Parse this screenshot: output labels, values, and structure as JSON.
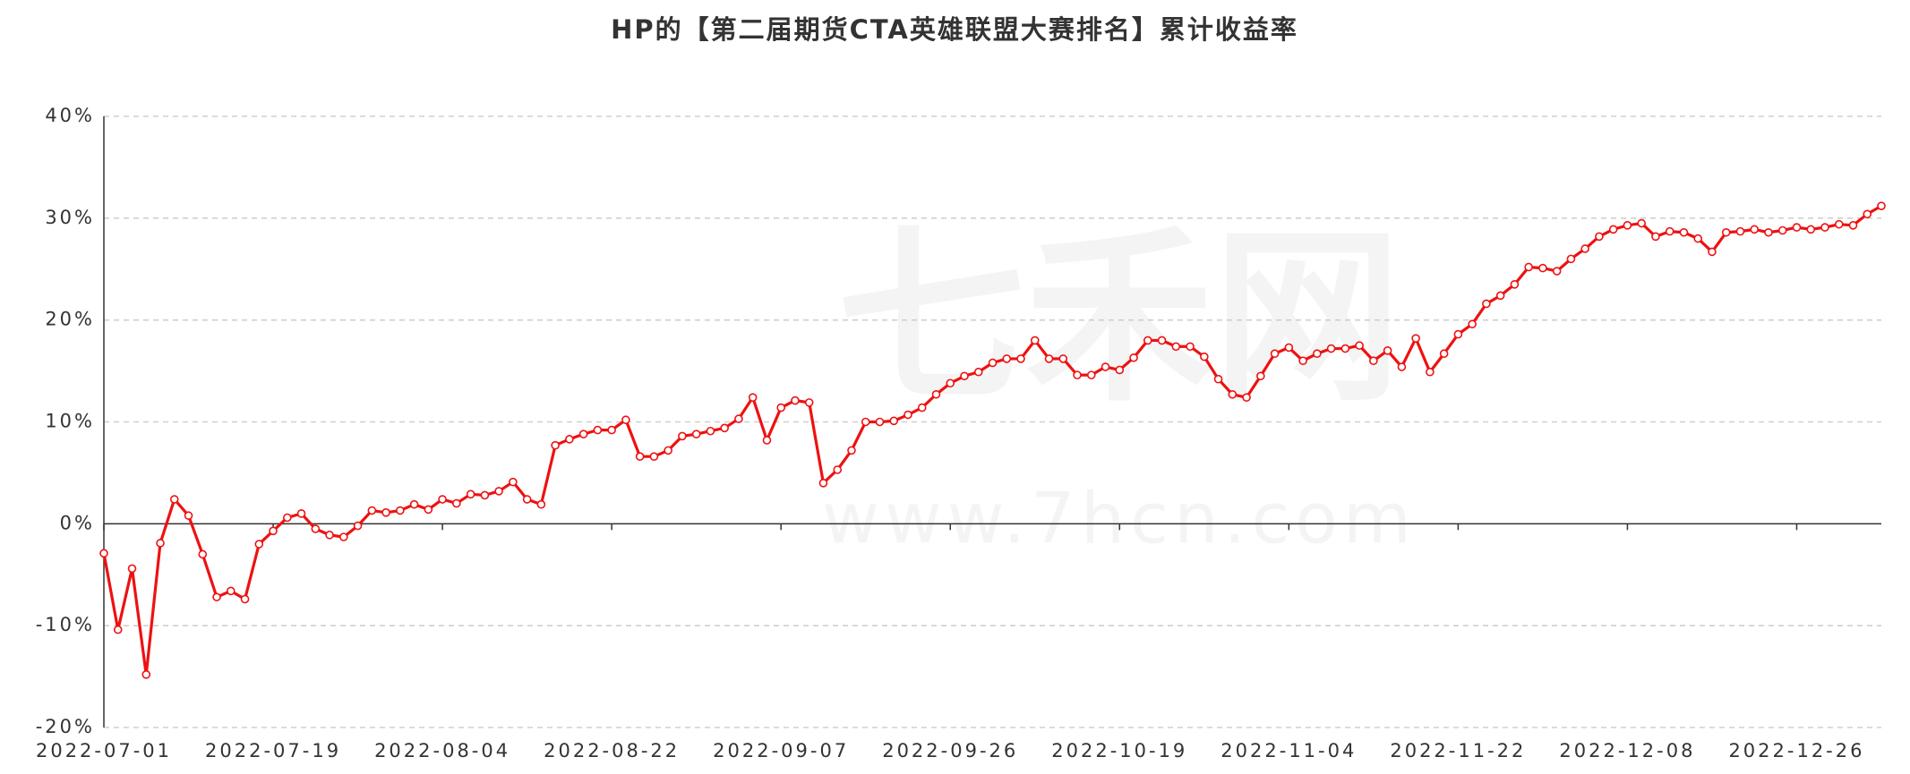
{
  "chart_data": {
    "type": "line",
    "title": "HP的【第二届期货CTA英雄联盟大赛排名】累计收益率",
    "watermark": [
      "七禾网",
      "www.7hcn.com"
    ],
    "categories": [
      "2022-07-01",
      null,
      null,
      null,
      null,
      null,
      null,
      null,
      null,
      null,
      null,
      null,
      "2022-07-19",
      null,
      null,
      null,
      null,
      null,
      null,
      null,
      null,
      null,
      null,
      null,
      "2022-08-04",
      null,
      null,
      null,
      null,
      null,
      null,
      null,
      null,
      null,
      null,
      null,
      "2022-08-22",
      null,
      null,
      null,
      null,
      null,
      null,
      null,
      null,
      null,
      null,
      null,
      "2022-09-07",
      null,
      null,
      null,
      null,
      null,
      null,
      null,
      null,
      null,
      null,
      null,
      "2022-09-26",
      null,
      null,
      null,
      null,
      null,
      null,
      null,
      null,
      null,
      null,
      null,
      "2022-10-19",
      null,
      null,
      null,
      null,
      null,
      null,
      null,
      null,
      null,
      null,
      null,
      "2022-11-04",
      null,
      null,
      null,
      null,
      null,
      null,
      null,
      null,
      null,
      null,
      null,
      "2022-11-22",
      null,
      null,
      null,
      null,
      null,
      null,
      null,
      null,
      null,
      null,
      null,
      "2022-12-08",
      null,
      null,
      null,
      null,
      null,
      null,
      null,
      null,
      null,
      null,
      null,
      "2022-12-26",
      null,
      null,
      null,
      null,
      null,
      null
    ],
    "series": [
      {
        "name": "累计收益率",
        "color": "#ee1111",
        "values": [
          -2.9,
          -10.4,
          -4.4,
          -14.8,
          -1.9,
          2.4,
          0.8,
          -3.0,
          -7.2,
          -6.6,
          -7.4,
          -2.0,
          -0.7,
          0.6,
          1.0,
          -0.5,
          -1.1,
          -1.3,
          -0.2,
          1.3,
          1.1,
          1.3,
          1.9,
          1.4,
          2.4,
          2.0,
          2.9,
          2.8,
          3.2,
          4.1,
          2.4,
          1.9,
          7.7,
          8.3,
          8.8,
          9.2,
          9.2,
          10.2,
          6.6,
          6.6,
          7.2,
          8.6,
          8.8,
          9.1,
          9.4,
          10.3,
          12.4,
          8.2,
          11.4,
          12.1,
          11.9,
          4.0,
          5.3,
          7.2,
          10.0,
          10.0,
          10.1,
          10.7,
          11.4,
          12.7,
          13.8,
          14.5,
          14.9,
          15.8,
          16.2,
          16.2,
          18.0,
          16.2,
          16.2,
          14.6,
          14.6,
          15.4,
          15.1,
          16.3,
          18.0,
          18.0,
          17.4,
          17.4,
          16.4,
          14.2,
          12.7,
          12.4,
          14.5,
          16.7,
          17.3,
          16.0,
          16.7,
          17.2,
          17.2,
          17.5,
          16.0,
          17.0,
          15.4,
          18.2,
          14.9,
          16.7,
          18.6,
          19.6,
          21.6,
          22.4,
          23.5,
          25.2,
          25.1,
          24.8,
          26.0,
          27.0,
          28.2,
          28.9,
          29.3,
          29.5,
          28.2,
          28.7,
          28.6,
          28.0,
          26.7,
          28.6,
          28.7,
          28.9,
          28.6,
          28.8,
          29.1,
          28.9,
          29.1,
          29.4,
          29.3,
          30.4,
          31.2
        ]
      }
    ],
    "ylim": [
      -20,
      40
    ],
    "yticks": [
      {
        "value": -20,
        "label": "-20%"
      },
      {
        "value": -10,
        "label": "-10%"
      },
      {
        "value": 0,
        "label": "0%"
      },
      {
        "value": 10,
        "label": "10%"
      },
      {
        "value": 20,
        "label": "20%"
      },
      {
        "value": 30,
        "label": "30%"
      },
      {
        "value": 40,
        "label": "40%"
      }
    ],
    "grid": true
  }
}
